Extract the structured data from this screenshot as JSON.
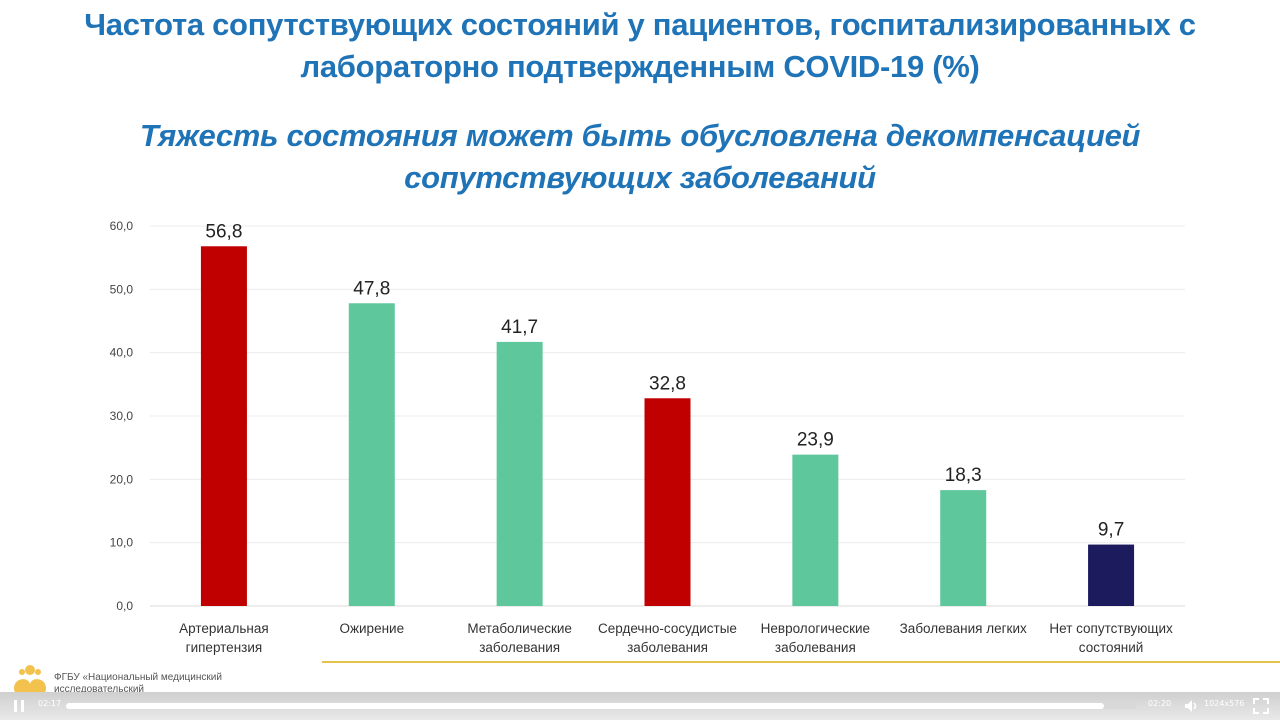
{
  "slide": {
    "title": "Частота сопутствующих состояний у пациентов, госпитализированных с лабораторно подтвержденным COVID-19 (%)",
    "subtitle": "Тяжесть состояния может быть обусловлена декомпенсацией сопутствующих заболеваний",
    "organization": "ФГБУ «Национальный медицинский исследовательский"
  },
  "chart_data": {
    "type": "bar",
    "categories": [
      [
        "Артериальная",
        "гипертензия"
      ],
      [
        "Ожирение"
      ],
      [
        "Метаболические",
        "заболевания"
      ],
      [
        "Сердечно-сосудистые",
        "заболевания"
      ],
      [
        "Неврологические",
        "заболевания"
      ],
      [
        "Заболевания легких"
      ],
      [
        "Нет сопутствующих",
        "состояний"
      ]
    ],
    "values": [
      56.8,
      47.8,
      41.7,
      32.8,
      23.9,
      18.3,
      9.7
    ],
    "value_labels": [
      "56,8",
      "47,8",
      "41,7",
      "32,8",
      "23,9",
      "18,3",
      "9,7"
    ],
    "bar_colors": [
      "#c00000",
      "#5fc79c",
      "#5fc79c",
      "#c00000",
      "#5fc79c",
      "#5fc79c",
      "#1b1b5e"
    ],
    "y_ticks": [
      "0,0",
      "10,0",
      "20,0",
      "30,0",
      "40,0",
      "50,0",
      "60,0"
    ],
    "ylim": [
      0,
      60
    ],
    "grid": true,
    "title": "",
    "xlabel": "",
    "ylabel": ""
  },
  "player": {
    "elapsed": "02:17",
    "total": "02:20",
    "resolution": "1024x576",
    "progress": 0.97,
    "play_icon": "pause-icon",
    "volume_icon": "volume-icon",
    "fullscreen_icon": "fullscreen-icon"
  }
}
